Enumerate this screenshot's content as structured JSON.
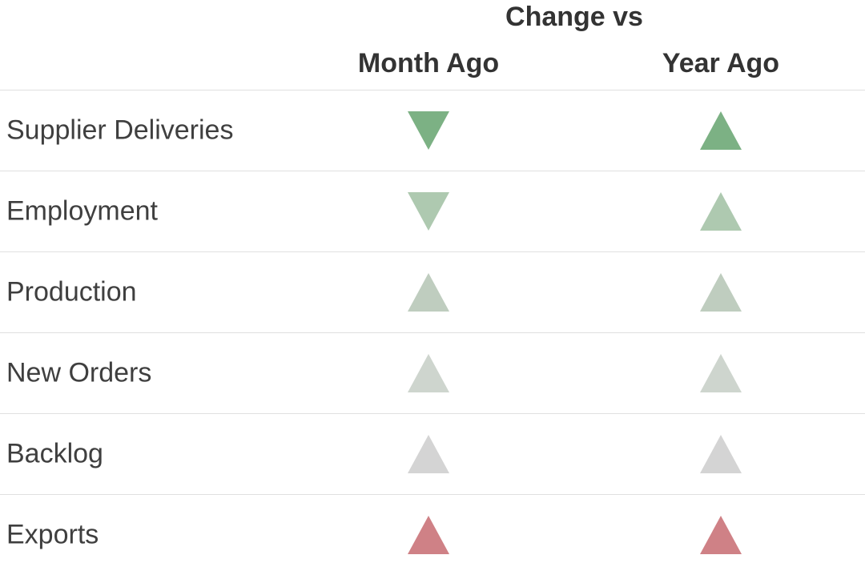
{
  "chart_data": {
    "type": "table",
    "title": "Change vs",
    "columns": [
      "Month Ago",
      "Year Ago"
    ],
    "legend_note": "triangle direction indicates change; fill color intensity ranges from green (positive) through gray (neutral) to red (negative)",
    "rows": [
      {
        "label": "Supplier Deliveries",
        "cells": [
          {
            "column": "Month Ago",
            "direction": "down",
            "color": "#7cb184"
          },
          {
            "column": "Year Ago",
            "direction": "up",
            "color": "#7cb184"
          }
        ]
      },
      {
        "label": "Employment",
        "cells": [
          {
            "column": "Month Ago",
            "direction": "down",
            "color": "#aec9b0"
          },
          {
            "column": "Year Ago",
            "direction": "up",
            "color": "#aec9b0"
          }
        ]
      },
      {
        "label": "Production",
        "cells": [
          {
            "column": "Month Ago",
            "direction": "up",
            "color": "#bfcdbf"
          },
          {
            "column": "Year Ago",
            "direction": "up",
            "color": "#bfcdbf"
          }
        ]
      },
      {
        "label": "New Orders",
        "cells": [
          {
            "column": "Month Ago",
            "direction": "up",
            "color": "#ced5ce"
          },
          {
            "column": "Year Ago",
            "direction": "up",
            "color": "#ced5ce"
          }
        ]
      },
      {
        "label": "Backlog",
        "cells": [
          {
            "column": "Month Ago",
            "direction": "up",
            "color": "#d4d4d4"
          },
          {
            "column": "Year Ago",
            "direction": "up",
            "color": "#d4d4d4"
          }
        ]
      },
      {
        "label": "Exports",
        "cells": [
          {
            "column": "Month Ago",
            "direction": "up",
            "color": "#cf8186"
          },
          {
            "column": "Year Ago",
            "direction": "up",
            "color": "#cf8186"
          }
        ]
      }
    ]
  }
}
